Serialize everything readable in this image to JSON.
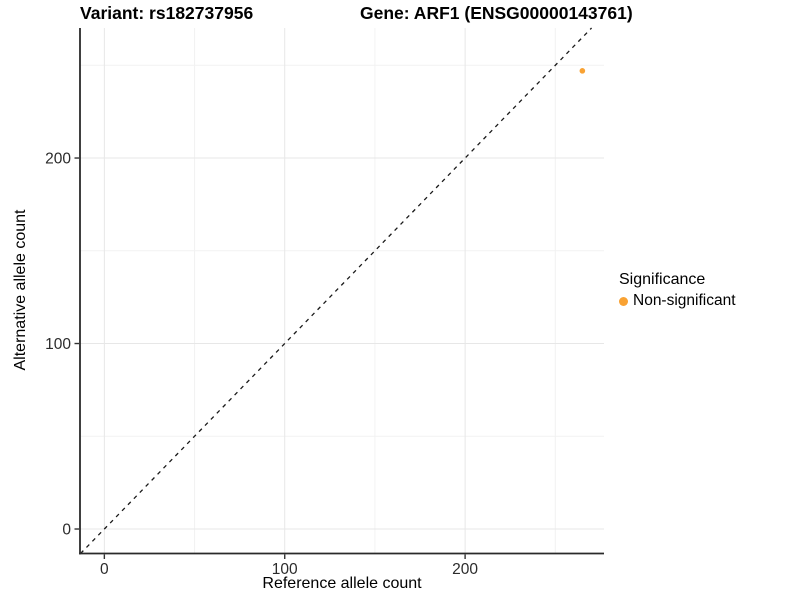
{
  "header": {
    "variant_title": "Variant: rs182737956",
    "gene_title": "Gene: ARF1 (ENSG00000143761)"
  },
  "chart_data": {
    "type": "scatter",
    "title": "Variant: rs182737956 | Gene: ARF1 (ENSG00000143761)",
    "xlabel": "Reference allele count",
    "ylabel": "Alternative allele count",
    "xlim": [
      -13.5,
      277
    ],
    "ylim": [
      -13.2,
      270.1
    ],
    "x_ticks": {
      "values": [
        0,
        100,
        200
      ],
      "labels": [
        "0",
        "100",
        "200"
      ]
    },
    "y_ticks": {
      "values": [
        0,
        100,
        200
      ],
      "labels": [
        "0",
        "100",
        "200"
      ]
    },
    "x_minor_ticks": [
      50,
      150,
      250
    ],
    "y_minor_ticks": [
      50,
      150,
      250
    ],
    "series": [
      {
        "name": "Non-significant",
        "color": "#F9A233",
        "points": [
          {
            "x": 265,
            "y": 247
          }
        ]
      }
    ],
    "reference_line": {
      "slope": 1,
      "intercept": 0,
      "style": "dashed",
      "color": "#1a1a1a"
    },
    "grid": true,
    "legend_position": "right"
  },
  "legend": {
    "title": "Significance",
    "items": [
      {
        "label": "Non-significant",
        "color": "#F9A233"
      }
    ]
  },
  "colors": {
    "background": "#ffffff",
    "grid_major": "#e7e7e7",
    "grid_minor": "#f2f2f2",
    "axis_line": "#2a2a2a",
    "tick_mark": "#333333",
    "tick_text": "#2b2b2b",
    "point": "#F9A233",
    "dashed_line": "#1a1a1a"
  }
}
